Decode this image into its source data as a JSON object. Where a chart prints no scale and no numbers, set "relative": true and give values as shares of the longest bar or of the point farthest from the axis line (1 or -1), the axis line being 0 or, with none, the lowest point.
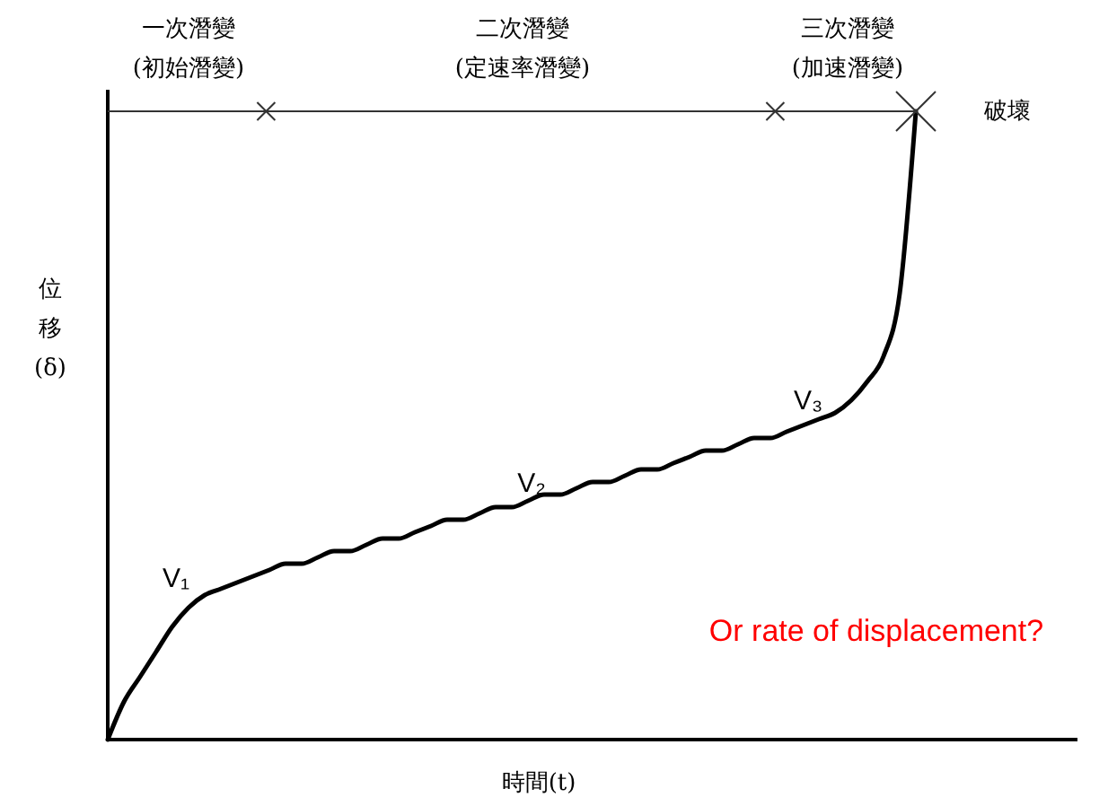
{
  "chart_data": {
    "type": "line",
    "relative": true,
    "xlabel": "時間(t)",
    "ylabel": "位移(δ)",
    "categories": [
      null,
      null,
      null,
      null,
      null,
      null,
      null,
      null,
      null,
      null,
      null,
      null,
      null,
      null,
      null,
      null,
      null,
      null,
      null,
      null,
      null,
      null,
      null,
      null,
      null,
      null,
      null,
      null,
      null,
      null,
      null,
      null,
      null,
      null,
      null,
      null,
      null,
      null,
      null,
      null,
      null,
      null,
      null,
      null,
      null,
      null,
      null,
      null,
      null,
      null,
      null,
      null,
      null,
      null,
      null,
      null,
      null,
      null,
      null,
      null,
      null
    ],
    "series": [
      {
        "color": "#000000",
        "values": [
          0,
          0.06,
          0.1,
          0.14,
          0.18,
          0.21,
          0.23,
          0.24,
          0.25,
          0.26,
          0.27,
          0.28,
          0.28,
          0.29,
          0.3,
          0.3,
          0.31,
          0.32,
          0.32,
          0.33,
          0.34,
          0.35,
          0.35,
          0.36,
          0.37,
          0.37,
          0.38,
          0.39,
          0.39,
          0.4,
          0.41,
          0.41,
          0.42,
          0.43,
          0.43,
          0.44,
          0.45,
          0.46,
          0.46,
          0.47,
          0.48,
          0.48,
          0.49,
          0.5,
          0.51,
          0.52,
          0.54,
          0.57,
          0.61,
          0.71,
          1,
          null,
          null,
          null,
          null,
          null,
          null,
          null,
          null,
          null,
          null
        ]
      }
    ],
    "annotations": [
      "一次潛變",
      "(初始潛變)",
      "二次潛變",
      "(定速率潛變)",
      "三次潛變",
      "(加速潛變)",
      "破壞",
      "V₁",
      "V₂",
      "V₃",
      "Or rate of displacement?"
    ]
  }
}
